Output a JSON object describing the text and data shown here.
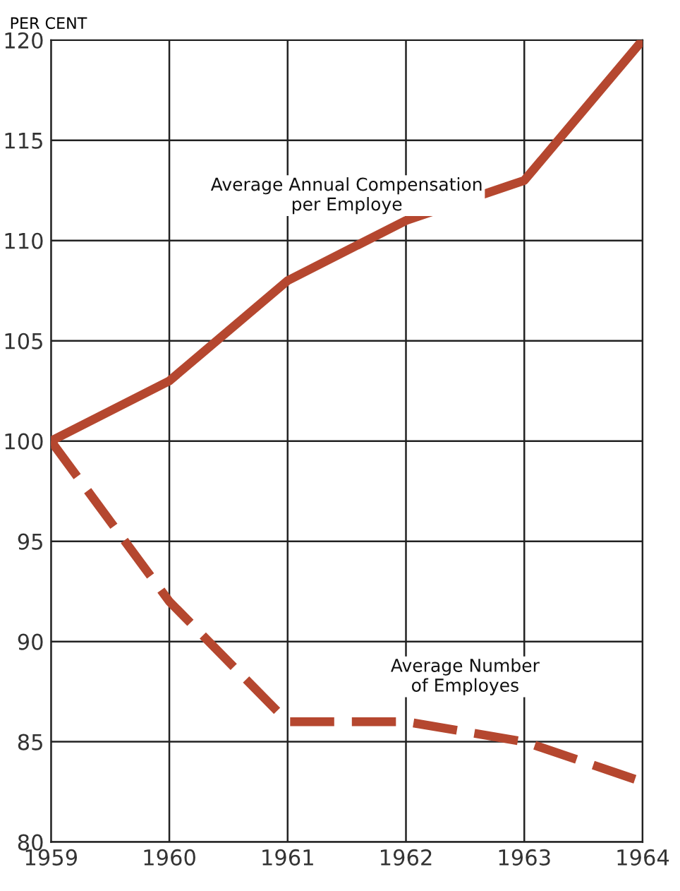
{
  "chart_data": {
    "type": "line",
    "ylabel": "PER CENT",
    "x": [
      1959,
      1960,
      1961,
      1962,
      1963,
      1964
    ],
    "series": [
      {
        "name": "Average Annual Compensation\nper Employe",
        "color": "#b5472f",
        "line_style": "solid",
        "values": [
          100,
          103,
          108,
          111,
          113,
          120
        ]
      },
      {
        "name": "Average Number\nof Employes",
        "color": "#b5472f",
        "line_style": "dashed",
        "values": [
          100,
          92,
          86,
          86,
          85,
          83
        ]
      }
    ],
    "xlim": [
      1959,
      1964
    ],
    "ylim": [
      80,
      120
    ],
    "xticks": [
      1959,
      1960,
      1961,
      1962,
      1963,
      1964
    ],
    "yticks": [
      80,
      85,
      90,
      95,
      100,
      105,
      110,
      115,
      120
    ],
    "grid": true,
    "marker": "none"
  }
}
